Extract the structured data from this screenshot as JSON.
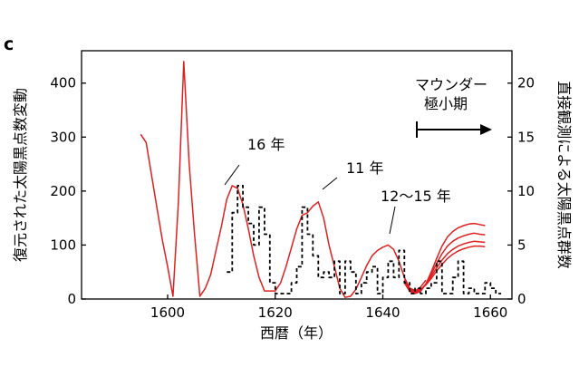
{
  "panel_label": "c",
  "chart_data": {
    "type": "line",
    "xlabel": "西暦（年）",
    "ylabel_left": "復元された太陽黒点数変動",
    "ylabel_right": "直接観測による太陽黒点群数",
    "xlim": [
      1584,
      1664
    ],
    "ylim_left": [
      0,
      460
    ],
    "ylim_right": [
      0,
      23
    ],
    "xticks": [
      1600,
      1620,
      1640,
      1660
    ],
    "yticks_left": [
      0,
      100,
      200,
      300,
      400
    ],
    "yticks_right": [
      0,
      5,
      10,
      15,
      20
    ],
    "annotations": {
      "cycle_16": "16 年",
      "cycle_11": "11 年",
      "cycle_12_15": "12〜15 年",
      "maunder_line1": "マウンダー",
      "maunder_line2": "極小期"
    },
    "series": [
      {
        "color": "#e02020",
        "axis": "left",
        "x": [
          1595,
          1596,
          1597,
          1598,
          1599,
          1600,
          1601,
          1602,
          1603,
          1604,
          1605,
          1606,
          1607,
          1608,
          1609,
          1610,
          1611,
          1612,
          1613,
          1614,
          1615,
          1616,
          1617,
          1618,
          1619,
          1620,
          1621,
          1622,
          1623,
          1624,
          1625,
          1626,
          1627,
          1628,
          1629,
          1630,
          1631,
          1632,
          1633,
          1634,
          1635,
          1636,
          1637,
          1638,
          1639,
          1640,
          1641,
          1642,
          1643,
          1644,
          1645,
          1646,
          1647,
          1648
        ],
        "y": [
          305,
          290,
          230,
          170,
          110,
          60,
          5,
          180,
          440,
          250,
          120,
          5,
          20,
          45,
          90,
          135,
          185,
          210,
          205,
          175,
          130,
          80,
          40,
          15,
          15,
          15,
          30,
          60,
          95,
          130,
          155,
          160,
          172,
          180,
          150,
          100,
          60,
          20,
          3,
          5,
          18,
          40,
          62,
          80,
          90,
          96,
          100,
          92,
          70,
          40,
          20,
          15,
          22,
          35
        ]
      },
      {
        "color": "#e02020",
        "axis": "left",
        "x": [
          1644,
          1645,
          1646,
          1647,
          1648,
          1649,
          1650,
          1651,
          1652,
          1653,
          1654,
          1655,
          1656,
          1657,
          1658,
          1659
        ],
        "y": [
          30,
          14,
          10,
          14,
          28,
          50,
          75,
          98,
          115,
          125,
          132,
          136,
          139,
          140,
          138,
          136
        ]
      },
      {
        "color": "#e02020",
        "axis": "left",
        "x": [
          1644,
          1645,
          1646,
          1647,
          1648,
          1649,
          1650,
          1651,
          1652,
          1653,
          1654,
          1655,
          1656,
          1657,
          1658,
          1659
        ],
        "y": [
          32,
          16,
          12,
          16,
          28,
          46,
          66,
          84,
          98,
          107,
          113,
          117,
          120,
          122,
          120,
          119
        ]
      },
      {
        "color": "#e02020",
        "axis": "left",
        "x": [
          1644,
          1645,
          1646,
          1647,
          1648,
          1649,
          1650,
          1651,
          1652,
          1653,
          1654,
          1655,
          1656,
          1657,
          1658,
          1659
        ],
        "y": [
          34,
          18,
          14,
          17,
          27,
          42,
          58,
          72,
          84,
          92,
          98,
          102,
          105,
          107,
          106,
          105
        ]
      },
      {
        "color": "#e02020",
        "axis": "left",
        "x": [
          1644,
          1645,
          1646,
          1647,
          1648,
          1649,
          1650,
          1651,
          1652,
          1653,
          1654,
          1655,
          1656,
          1657,
          1658,
          1659
        ],
        "y": [
          36,
          20,
          16,
          18,
          26,
          38,
          52,
          64,
          75,
          83,
          89,
          93,
          96,
          98,
          98,
          97
        ]
      },
      {
        "color": "#000000",
        "axis": "right",
        "style": "dashed",
        "x": [
          1611,
          1612,
          1612,
          1613,
          1613,
          1614,
          1614,
          1615,
          1615,
          1616,
          1616,
          1617,
          1617,
          1618,
          1618,
          1619,
          1619,
          1620,
          1620,
          1621,
          1621,
          1622,
          1622,
          1623,
          1623,
          1624,
          1624,
          1625,
          1625,
          1626,
          1626,
          1627,
          1627,
          1628,
          1628,
          1629,
          1629,
          1630,
          1630,
          1631,
          1631,
          1632,
          1632,
          1633,
          1633,
          1634,
          1634,
          1635,
          1635,
          1636,
          1636,
          1637,
          1637,
          1638,
          1638,
          1639,
          1639,
          1640,
          1640,
          1641,
          1641,
          1642,
          1642,
          1643,
          1643,
          1644,
          1644,
          1645,
          1645,
          1646,
          1646,
          1647,
          1647,
          1648,
          1648,
          1649,
          1649,
          1650,
          1650,
          1651,
          1651,
          1652,
          1652,
          1653,
          1653,
          1654,
          1654,
          1655,
          1655,
          1656,
          1656,
          1657,
          1657,
          1658,
          1658,
          1659,
          1659,
          1660,
          1660,
          1661,
          1661,
          1662
        ],
        "y": [
          2.5,
          2.5,
          8,
          8,
          10.5,
          10.5,
          8.5,
          8.5,
          7,
          7,
          5,
          5,
          8.5,
          8.5,
          6,
          6,
          1.5,
          1.5,
          0.5,
          0.5,
          0.5,
          0.5,
          0.5,
          0.5,
          1.5,
          1.5,
          3,
          3,
          8.5,
          8.5,
          6,
          6,
          4,
          4,
          2,
          2,
          2.5,
          2.5,
          2,
          2,
          3.5,
          3.5,
          0.5,
          0.5,
          3.5,
          3.5,
          2.5,
          2.5,
          0.5,
          0.5,
          1.5,
          1.5,
          2.5,
          2.5,
          3,
          3,
          0.5,
          0.5,
          2,
          2,
          3.5,
          3.5,
          2,
          2,
          4.5,
          4.5,
          1.5,
          1.5,
          0.5,
          0.5,
          1,
          1,
          0.5,
          0.5,
          1,
          1,
          1.5,
          1.5,
          3.5,
          3.5,
          0.5,
          0.5,
          0.5,
          0.5,
          2,
          2,
          3.5,
          3.5,
          0.5,
          0.5,
          1,
          1,
          0.5,
          0.5,
          0.5,
          0.5,
          1.5,
          1.5,
          1,
          1,
          0.5,
          0.5
        ]
      }
    ]
  }
}
